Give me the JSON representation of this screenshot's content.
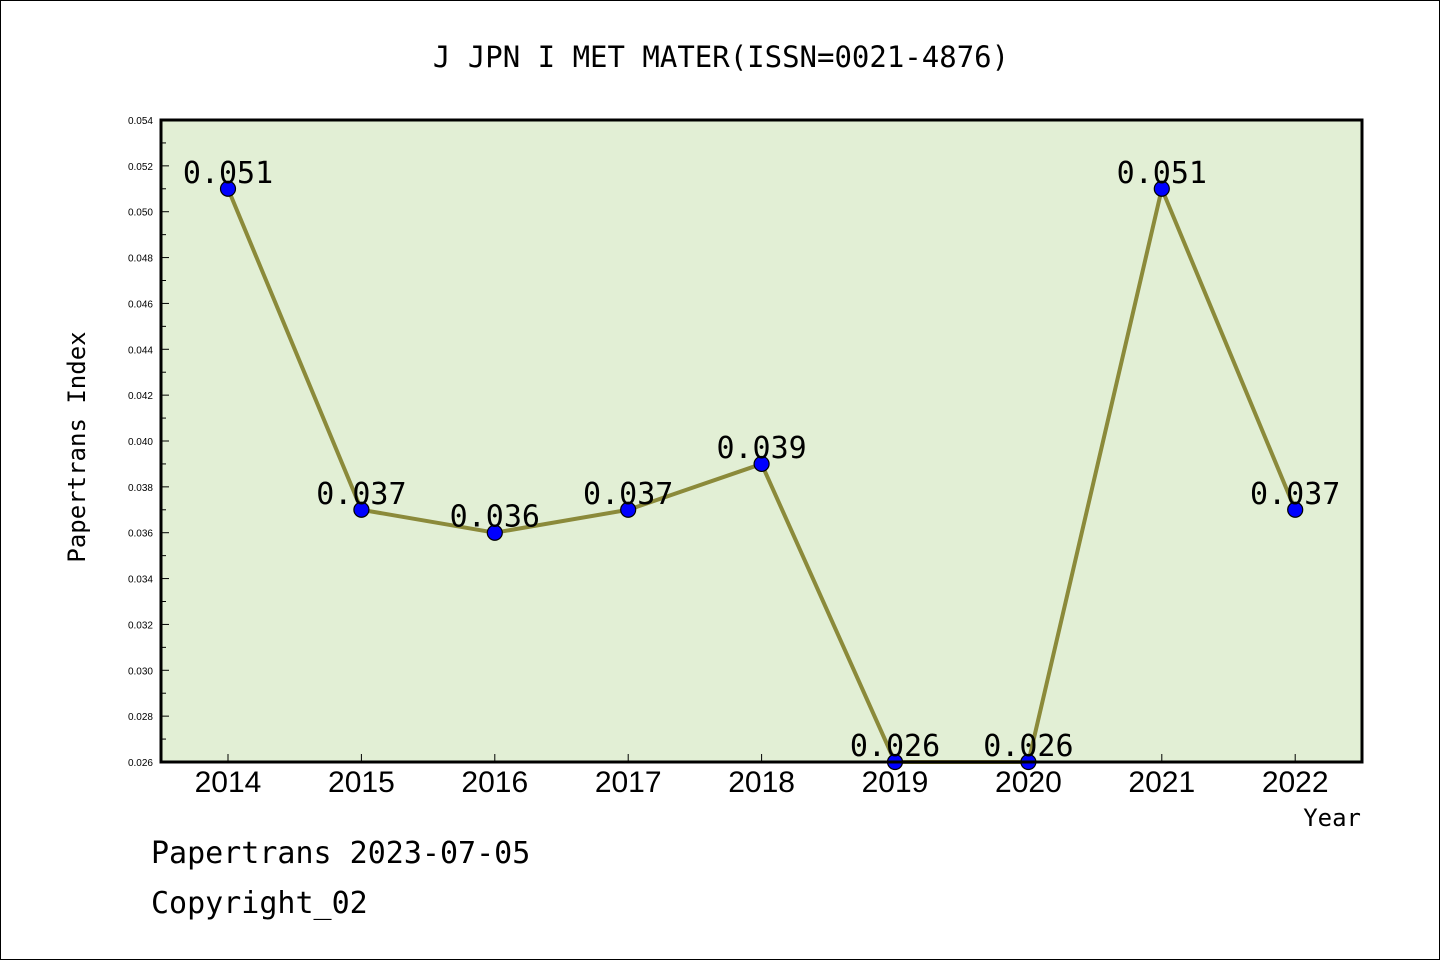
{
  "chart_data": {
    "type": "line",
    "title": "J JPN I MET MATER(ISSN=0021-4876)",
    "xlabel": "Year",
    "ylabel": "Papertrans Index",
    "categories": [
      "2014",
      "2015",
      "2016",
      "2017",
      "2018",
      "2019",
      "2020",
      "2021",
      "2022"
    ],
    "series": [
      {
        "values": [
          0.051,
          0.037,
          0.036,
          0.037,
          0.039,
          0.026,
          0.026,
          0.051,
          0.037
        ]
      }
    ],
    "data_labels": [
      "0.051",
      "0.037",
      "0.036",
      "0.037",
      "0.039",
      "0.026",
      "0.026",
      "0.051",
      "0.037"
    ],
    "ylim": [
      0.026,
      0.054
    ],
    "yticks": [
      "0.026",
      "0.028",
      "0.030",
      "0.032",
      "0.034",
      "0.036",
      "0.038",
      "0.040",
      "0.042",
      "0.044",
      "0.046",
      "0.048",
      "0.050",
      "0.052",
      "0.054"
    ],
    "grid": false,
    "legend": "none",
    "colors": {
      "plot_background": "#e2efd5",
      "line": "#8b8a3a",
      "marker": "#0000ff"
    }
  },
  "footer": {
    "date_line": "Papertrans 2023-07-05",
    "copyright": "Copyright_02"
  }
}
